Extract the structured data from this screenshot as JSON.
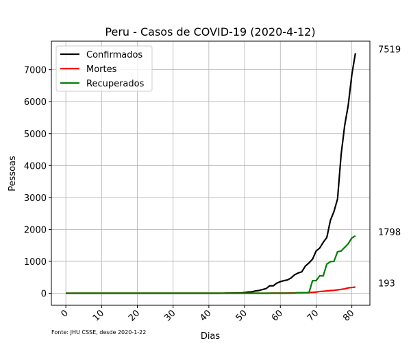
{
  "chart_data": {
    "type": "line",
    "title": "Peru - Casos de COVID-19 (2020-4-12)",
    "xlabel": "Dias",
    "ylabel": "Pessoas",
    "source": "Fonte: JHU CSSE, desde 2020-1-22",
    "x": [
      0,
      1,
      2,
      3,
      4,
      5,
      6,
      7,
      8,
      9,
      10,
      11,
      12,
      13,
      14,
      15,
      16,
      17,
      18,
      19,
      20,
      21,
      22,
      23,
      24,
      25,
      26,
      27,
      28,
      29,
      30,
      31,
      32,
      33,
      34,
      35,
      36,
      37,
      38,
      39,
      40,
      41,
      42,
      43,
      44,
      45,
      46,
      47,
      48,
      49,
      50,
      51,
      52,
      53,
      54,
      55,
      56,
      57,
      58,
      59,
      60,
      61,
      62,
      63,
      64,
      65,
      66,
      67,
      68,
      69,
      70,
      71,
      72,
      73,
      74,
      75,
      76,
      77,
      78,
      79,
      80,
      81
    ],
    "series": [
      {
        "name": "Confirmados",
        "color": "#000000",
        "values": [
          0,
          0,
          0,
          0,
          0,
          0,
          0,
          0,
          0,
          0,
          0,
          0,
          0,
          0,
          0,
          0,
          0,
          0,
          0,
          0,
          0,
          0,
          0,
          0,
          0,
          0,
          0,
          0,
          0,
          0,
          0,
          0,
          0,
          0,
          0,
          0,
          0,
          0,
          0,
          0,
          0,
          0,
          0,
          0,
          1,
          6,
          7,
          9,
          11,
          11,
          22,
          38,
          43,
          71,
          86,
          117,
          145,
          234,
          234,
          318,
          363,
          395,
          416,
          480,
          580,
          635,
          671,
          852,
          950,
          1065,
          1323,
          1414,
          1595,
          1746,
          2281,
          2561,
          2954,
          4342,
          5256,
          5897,
          6848,
          7519
        ]
      },
      {
        "name": "Mortes",
        "color": "#ff0000",
        "values": [
          0,
          0,
          0,
          0,
          0,
          0,
          0,
          0,
          0,
          0,
          0,
          0,
          0,
          0,
          0,
          0,
          0,
          0,
          0,
          0,
          0,
          0,
          0,
          0,
          0,
          0,
          0,
          0,
          0,
          0,
          0,
          0,
          0,
          0,
          0,
          0,
          0,
          0,
          0,
          0,
          0,
          0,
          0,
          0,
          0,
          0,
          0,
          0,
          0,
          0,
          0,
          0,
          0,
          0,
          0,
          0,
          0,
          3,
          5,
          5,
          5,
          7,
          7,
          9,
          11,
          16,
          18,
          19,
          24,
          30,
          38,
          55,
          61,
          73,
          83,
          92,
          107,
          121,
          138,
          169,
          181,
          193
        ]
      },
      {
        "name": "Recuperados",
        "color": "#008000",
        "values": [
          0,
          0,
          0,
          0,
          0,
          0,
          0,
          0,
          0,
          0,
          0,
          0,
          0,
          0,
          0,
          0,
          0,
          0,
          0,
          0,
          0,
          0,
          0,
          0,
          0,
          0,
          0,
          0,
          0,
          0,
          0,
          0,
          0,
          0,
          0,
          0,
          0,
          0,
          0,
          0,
          0,
          0,
          0,
          0,
          0,
          0,
          0,
          0,
          0,
          0,
          0,
          0,
          0,
          0,
          0,
          0,
          0,
          0,
          0,
          0,
          0,
          0,
          0,
          1,
          1,
          14,
          14,
          16,
          16,
          394,
          394,
          545,
          545,
          914,
          989,
          1000,
          1301,
          1324,
          1438,
          1553,
          1735,
          1798
        ]
      }
    ],
    "xlim": [
      -4.05,
      85.05
    ],
    "ylim": [
      -376,
      7895
    ],
    "xticks": [
      0,
      10,
      20,
      30,
      40,
      50,
      60,
      70,
      80
    ],
    "yticks": [
      0,
      1000,
      2000,
      3000,
      4000,
      5000,
      6000,
      7000
    ],
    "grid": true,
    "legend": "upper left"
  }
}
